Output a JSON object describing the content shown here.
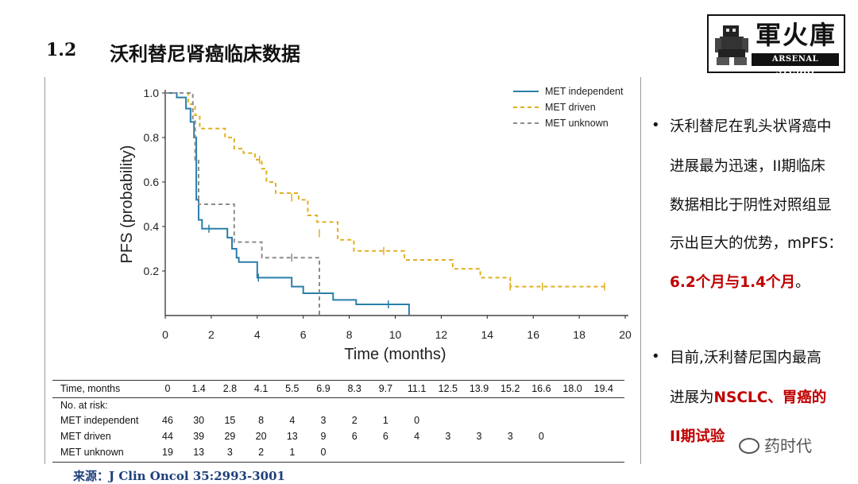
{
  "header": {
    "number": "1.2",
    "title": "沃利替尼肾癌临床数据"
  },
  "logo": {
    "cn": "軍火庫",
    "en": "ARSENAL STUDIO"
  },
  "chart_data": {
    "type": "line",
    "step": true,
    "xlabel": "Time (months)",
    "ylabel": "PFS (probability)",
    "xlim": [
      0,
      20
    ],
    "ylim": [
      0,
      1.0
    ],
    "xticks": [
      "0",
      "2",
      "4",
      "6",
      "8",
      "10",
      "12",
      "14",
      "16",
      "18",
      "20"
    ],
    "yticks": [
      "0.2",
      "0.4",
      "0.6",
      "0.8",
      "1.0"
    ],
    "legend_position": "top-right",
    "series": [
      {
        "name": "MET independent",
        "color": "#2a7fa8",
        "style": "solid",
        "points": [
          [
            0,
            1.0
          ],
          [
            0.5,
            1.0
          ],
          [
            0.5,
            0.98
          ],
          [
            0.9,
            0.98
          ],
          [
            0.9,
            0.93
          ],
          [
            1.1,
            0.93
          ],
          [
            1.1,
            0.87
          ],
          [
            1.25,
            0.87
          ],
          [
            1.25,
            0.8
          ],
          [
            1.35,
            0.8
          ],
          [
            1.35,
            0.52
          ],
          [
            1.45,
            0.52
          ],
          [
            1.45,
            0.43
          ],
          [
            1.6,
            0.43
          ],
          [
            1.6,
            0.39
          ],
          [
            2.7,
            0.39
          ],
          [
            2.7,
            0.35
          ],
          [
            2.9,
            0.35
          ],
          [
            2.9,
            0.3
          ],
          [
            3.1,
            0.3
          ],
          [
            3.1,
            0.26
          ],
          [
            3.2,
            0.26
          ],
          [
            3.2,
            0.24
          ],
          [
            4.0,
            0.24
          ],
          [
            4.0,
            0.17
          ],
          [
            5.5,
            0.17
          ],
          [
            5.5,
            0.13
          ],
          [
            6.0,
            0.13
          ],
          [
            6.0,
            0.1
          ],
          [
            7.3,
            0.1
          ],
          [
            7.3,
            0.07
          ],
          [
            8.3,
            0.07
          ],
          [
            8.3,
            0.05
          ],
          [
            10.6,
            0.05
          ],
          [
            10.6,
            0.0
          ]
        ],
        "censor": [
          [
            1.9,
            0.39
          ],
          [
            4.05,
            0.17
          ],
          [
            9.7,
            0.05
          ]
        ]
      },
      {
        "name": "MET driven",
        "color": "#e0b020",
        "style": "dashed",
        "points": [
          [
            0,
            1.0
          ],
          [
            1.0,
            1.0
          ],
          [
            1.0,
            0.95
          ],
          [
            1.3,
            0.95
          ],
          [
            1.3,
            0.9
          ],
          [
            1.5,
            0.9
          ],
          [
            1.5,
            0.84
          ],
          [
            2.6,
            0.84
          ],
          [
            2.6,
            0.8
          ],
          [
            3.0,
            0.8
          ],
          [
            3.0,
            0.75
          ],
          [
            3.4,
            0.75
          ],
          [
            3.4,
            0.73
          ],
          [
            3.9,
            0.73
          ],
          [
            3.9,
            0.7
          ],
          [
            4.2,
            0.7
          ],
          [
            4.2,
            0.66
          ],
          [
            4.4,
            0.66
          ],
          [
            4.4,
            0.6
          ],
          [
            4.8,
            0.6
          ],
          [
            4.8,
            0.55
          ],
          [
            5.8,
            0.55
          ],
          [
            5.8,
            0.52
          ],
          [
            6.2,
            0.52
          ],
          [
            6.2,
            0.45
          ],
          [
            6.6,
            0.45
          ],
          [
            6.6,
            0.42
          ],
          [
            7.5,
            0.42
          ],
          [
            7.5,
            0.34
          ],
          [
            8.2,
            0.34
          ],
          [
            8.2,
            0.29
          ],
          [
            10.4,
            0.29
          ],
          [
            10.4,
            0.25
          ],
          [
            12.5,
            0.25
          ],
          [
            12.5,
            0.21
          ],
          [
            13.7,
            0.21
          ],
          [
            13.7,
            0.17
          ],
          [
            15.0,
            0.17
          ],
          [
            15.0,
            0.13
          ],
          [
            19.2,
            0.13
          ]
        ],
        "censor": [
          [
            4.1,
            0.7
          ],
          [
            5.5,
            0.53
          ],
          [
            6.7,
            0.37
          ],
          [
            9.5,
            0.29
          ],
          [
            15.0,
            0.13
          ],
          [
            16.4,
            0.13
          ],
          [
            19.1,
            0.13
          ]
        ]
      },
      {
        "name": "MET unknown",
        "color": "#8c8c8c",
        "style": "dashed",
        "points": [
          [
            0,
            1.0
          ],
          [
            1.2,
            1.0
          ],
          [
            1.2,
            0.88
          ],
          [
            1.3,
            0.88
          ],
          [
            1.3,
            0.7
          ],
          [
            1.45,
            0.7
          ],
          [
            1.45,
            0.5
          ],
          [
            3.0,
            0.5
          ],
          [
            3.0,
            0.33
          ],
          [
            4.2,
            0.33
          ],
          [
            4.2,
            0.26
          ],
          [
            6.7,
            0.26
          ],
          [
            6.7,
            0.0
          ]
        ],
        "censor": [
          [
            5.5,
            0.26
          ]
        ]
      }
    ]
  },
  "risk_table": {
    "time_label": "Time, months",
    "times": [
      "0",
      "1.4",
      "2.8",
      "4.1",
      "5.5",
      "6.9",
      "8.3",
      "9.7",
      "11.1",
      "12.5",
      "13.9",
      "15.2",
      "16.6",
      "18.0",
      "19.4"
    ],
    "subheader": "No. at risk:",
    "rows": [
      {
        "name": "MET independent",
        "values": [
          "46",
          "30",
          "15",
          "8",
          "4",
          "3",
          "2",
          "1",
          "0",
          "",
          "",
          "",
          "",
          "",
          ""
        ]
      },
      {
        "name": "MET driven",
        "values": [
          "44",
          "39",
          "29",
          "20",
          "13",
          "9",
          "6",
          "6",
          "4",
          "3",
          "3",
          "3",
          "0",
          "",
          ""
        ]
      },
      {
        "name": "MET unknown",
        "values": [
          "19",
          "13",
          "3",
          "2",
          "1",
          "0",
          "",
          "",
          "",
          "",
          "",
          "",
          "",
          "",
          ""
        ]
      }
    ]
  },
  "bullets": [
    {
      "lines": [
        "沃利替尼在乳头状肾癌中",
        "进展最为迅速，II期临床",
        "数据相比于阴性对照组显",
        "示出巨大的优势，mPFS："
      ],
      "highlight": "6.2个月与1.4个月",
      "highlight_suffix": "。"
    },
    {
      "lines": [
        "目前,沃利替尼国内最高",
        "进展为"
      ],
      "highlight_inline": "NSCLC、胃癌的",
      "highlight_line3": "II期试验"
    }
  ],
  "source": "来源：J Clin Oncol 35:2993-3001",
  "watermark": "药时代"
}
